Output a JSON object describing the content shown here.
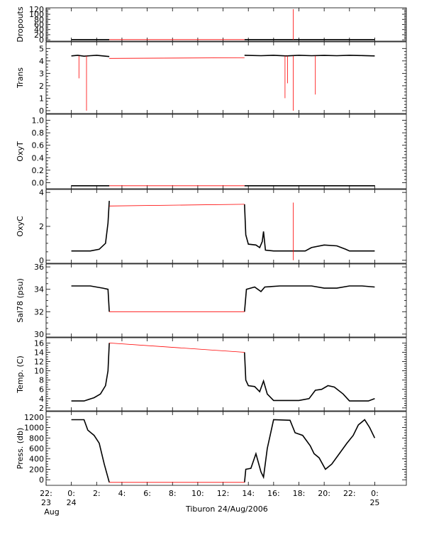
{
  "figure": {
    "caption": "Tiburon 24/Aug/2006"
  },
  "chart_data": [
    {
      "type": "line",
      "ylabel": "Dropouts",
      "ylim": [
        0,
        120
      ],
      "yticks": [
        0,
        20,
        40,
        60,
        80,
        100,
        120
      ],
      "series": [
        {
          "color": "#000000",
          "segments": [
            [
              [
                0,
                1
              ],
              [
                3.0,
                1
              ]
            ],
            [
              [
                13.7,
                1
              ],
              [
                24.0,
                1
              ]
            ]
          ]
        },
        {
          "color": "#ff0000",
          "segments": [
            [
              [
                3.0,
                1
              ],
              [
                13.7,
                1
              ]
            ],
            [
              [
                17.55,
                0
              ],
              [
                17.55,
                120
              ]
            ]
          ]
        }
      ]
    },
    {
      "type": "line",
      "ylabel": "Trans",
      "ylim": [
        0,
        5.3
      ],
      "yticks": [
        0,
        1,
        2,
        3,
        4,
        5
      ],
      "series": [
        {
          "color": "#000000",
          "segments": [
            [
              [
                0,
                4.4
              ],
              [
                0.5,
                4.45
              ],
              [
                1,
                4.38
              ],
              [
                1.5,
                4.42
              ],
              [
                2,
                4.45
              ],
              [
                2.5,
                4.4
              ],
              [
                3.0,
                4.35
              ]
            ],
            [
              [
                13.7,
                4.45
              ],
              [
                15,
                4.42
              ],
              [
                16,
                4.45
              ],
              [
                17,
                4.4
              ],
              [
                18,
                4.45
              ],
              [
                19,
                4.42
              ],
              [
                20,
                4.44
              ],
              [
                21,
                4.42
              ],
              [
                22,
                4.45
              ],
              [
                23,
                4.43
              ],
              [
                24,
                4.4
              ]
            ]
          ]
        },
        {
          "color": "#ff0000",
          "segments": [
            [
              [
                3.0,
                4.2
              ],
              [
                13.7,
                4.25
              ]
            ],
            [
              [
                0.6,
                4.4
              ],
              [
                0.6,
                2.6
              ]
            ],
            [
              [
                1.2,
                4.4
              ],
              [
                1.2,
                0
              ]
            ],
            [
              [
                16.9,
                4.4
              ],
              [
                16.9,
                1.0
              ]
            ],
            [
              [
                17.1,
                4.4
              ],
              [
                17.1,
                2.2
              ]
            ],
            [
              [
                17.55,
                4.4
              ],
              [
                17.55,
                0
              ]
            ],
            [
              [
                19.3,
                4.4
              ],
              [
                19.3,
                1.3
              ]
            ]
          ]
        }
      ]
    },
    {
      "type": "line",
      "ylabel": "OxyT",
      "ylim": [
        -0.05,
        1.05
      ],
      "yticks": [
        0.0,
        0.2,
        0.4,
        0.6,
        0.8,
        1.0
      ],
      "series": [
        {
          "color": "#000000",
          "segments": [
            [
              [
                0,
                -0.05
              ],
              [
                3.0,
                -0.05
              ]
            ],
            [
              [
                13.7,
                -0.05
              ],
              [
                24.0,
                -0.05
              ]
            ]
          ]
        },
        {
          "color": "#ff0000",
          "segments": [
            [
              [
                3.0,
                -0.05
              ],
              [
                13.7,
                -0.05
              ]
            ]
          ]
        }
      ]
    },
    {
      "type": "line",
      "ylabel": "OxyC",
      "ylim": [
        0,
        4
      ],
      "yticks": [
        0,
        2,
        4
      ],
      "series": [
        {
          "color": "#000000",
          "segments": [
            [
              [
                0,
                0.55
              ],
              [
                1.5,
                0.55
              ],
              [
                2.2,
                0.65
              ],
              [
                2.7,
                1.0
              ],
              [
                2.9,
                2.2
              ],
              [
                3.0,
                3.5
              ]
            ],
            [
              [
                13.7,
                3.3
              ],
              [
                13.8,
                1.5
              ],
              [
                14.0,
                0.95
              ],
              [
                14.6,
                0.9
              ],
              [
                14.9,
                0.75
              ],
              [
                15.1,
                1.1
              ],
              [
                15.2,
                1.7
              ],
              [
                15.35,
                0.6
              ],
              [
                16,
                0.55
              ],
              [
                18.5,
                0.55
              ],
              [
                19.0,
                0.75
              ],
              [
                20.0,
                0.9
              ],
              [
                21.0,
                0.85
              ],
              [
                21.7,
                0.65
              ],
              [
                22.0,
                0.55
              ],
              [
                24.0,
                0.55
              ]
            ]
          ]
        },
        {
          "color": "#ff0000",
          "segments": [
            [
              [
                3.0,
                3.2
              ],
              [
                13.7,
                3.3
              ]
            ],
            [
              [
                17.55,
                3.4
              ],
              [
                17.55,
                0
              ]
            ]
          ]
        }
      ]
    },
    {
      "type": "line",
      "ylabel": "Sal78 (psu)",
      "ylim": [
        30,
        36
      ],
      "yticks": [
        30,
        32,
        34,
        36
      ],
      "series": [
        {
          "color": "#000000",
          "segments": [
            [
              [
                0,
                34.3
              ],
              [
                1.5,
                34.3
              ],
              [
                2.5,
                34.1
              ],
              [
                2.9,
                34.0
              ],
              [
                3.0,
                32.0
              ]
            ],
            [
              [
                13.7,
                32.0
              ],
              [
                13.85,
                34.0
              ],
              [
                14.5,
                34.2
              ],
              [
                15.0,
                33.8
              ],
              [
                15.3,
                34.2
              ],
              [
                16.5,
                34.3
              ],
              [
                19,
                34.3
              ],
              [
                20,
                34.1
              ],
              [
                21,
                34.1
              ],
              [
                22,
                34.3
              ],
              [
                23,
                34.3
              ],
              [
                24,
                34.2
              ]
            ]
          ]
        },
        {
          "color": "#ff0000",
          "segments": [
            [
              [
                3.0,
                32.0
              ],
              [
                13.7,
                32.0
              ]
            ]
          ]
        }
      ]
    },
    {
      "type": "line",
      "ylabel": "Temp. (C)",
      "ylim": [
        2,
        16.5
      ],
      "yticks": [
        2,
        4,
        6,
        8,
        10,
        12,
        14,
        16
      ],
      "series": [
        {
          "color": "#000000",
          "segments": [
            [
              [
                0,
                3.5
              ],
              [
                1.0,
                3.5
              ],
              [
                1.8,
                4.2
              ],
              [
                2.3,
                5.0
              ],
              [
                2.7,
                6.8
              ],
              [
                2.9,
                10.0
              ],
              [
                3.0,
                16.0
              ]
            ],
            [
              [
                13.7,
                14.0
              ],
              [
                13.8,
                8.0
              ],
              [
                14.0,
                6.8
              ],
              [
                14.5,
                6.6
              ],
              [
                14.9,
                5.5
              ],
              [
                15.2,
                7.8
              ],
              [
                15.5,
                5.0
              ],
              [
                16,
                3.6
              ],
              [
                18,
                3.6
              ],
              [
                18.8,
                4.0
              ],
              [
                19.3,
                5.8
              ],
              [
                19.8,
                6.0
              ],
              [
                20.3,
                6.8
              ],
              [
                20.8,
                6.5
              ],
              [
                21.5,
                5.0
              ],
              [
                22,
                3.5
              ],
              [
                23.5,
                3.5
              ],
              [
                24,
                4.0
              ]
            ]
          ]
        },
        {
          "color": "#ff0000",
          "segments": [
            [
              [
                3.0,
                16.0
              ],
              [
                13.7,
                14.0
              ]
            ]
          ]
        }
      ]
    },
    {
      "type": "line",
      "ylabel": "Press. (db)",
      "ylim": [
        -50,
        1250
      ],
      "yticks": [
        0,
        200,
        400,
        600,
        800,
        1000,
        1200
      ],
      "series": [
        {
          "color": "#000000",
          "segments": [
            [
              [
                0,
                1150
              ],
              [
                1.0,
                1150
              ],
              [
                1.3,
                950
              ],
              [
                1.8,
                850
              ],
              [
                2.2,
                700
              ],
              [
                2.6,
                300
              ],
              [
                3.0,
                -50
              ]
            ],
            [
              [
                13.7,
                -50
              ],
              [
                13.8,
                200
              ],
              [
                14.2,
                220
              ],
              [
                14.6,
                500
              ],
              [
                15.0,
                150
              ],
              [
                15.2,
                50
              ],
              [
                15.5,
                600
              ],
              [
                16.0,
                1150
              ],
              [
                17.3,
                1140
              ],
              [
                17.7,
                900
              ],
              [
                18.3,
                850
              ],
              [
                18.9,
                650
              ],
              [
                19.2,
                500
              ],
              [
                19.6,
                420
              ],
              [
                20.1,
                200
              ],
              [
                20.6,
                300
              ],
              [
                21.2,
                500
              ],
              [
                21.8,
                700
              ],
              [
                22.3,
                850
              ],
              [
                22.7,
                1050
              ],
              [
                23.2,
                1150
              ],
              [
                23.6,
                1000
              ],
              [
                24.0,
                800
              ]
            ]
          ]
        },
        {
          "color": "#ff0000",
          "segments": [
            [
              [
                3.0,
                -50
              ],
              [
                13.7,
                -50
              ]
            ]
          ]
        }
      ]
    }
  ],
  "xaxis": {
    "range": [
      -2,
      26.5
    ],
    "ticks": [
      {
        "pos": -2,
        "label": "22:",
        "sub": "23"
      },
      {
        "pos": 0,
        "label": "0:",
        "sub": "24"
      },
      {
        "pos": 2,
        "label": "2:"
      },
      {
        "pos": 4,
        "label": "4:"
      },
      {
        "pos": 6,
        "label": "6:"
      },
      {
        "pos": 8,
        "label": "8:"
      },
      {
        "pos": 10,
        "label": "10:"
      },
      {
        "pos": 12,
        "label": "12:"
      },
      {
        "pos": 14,
        "label": "14:"
      },
      {
        "pos": 16,
        "label": "16:"
      },
      {
        "pos": 18,
        "label": "18:"
      },
      {
        "pos": 20,
        "label": "20:"
      },
      {
        "pos": 22,
        "label": "22:"
      },
      {
        "pos": 24,
        "label": "0:",
        "sub": "25"
      }
    ],
    "month_label": "Aug"
  }
}
